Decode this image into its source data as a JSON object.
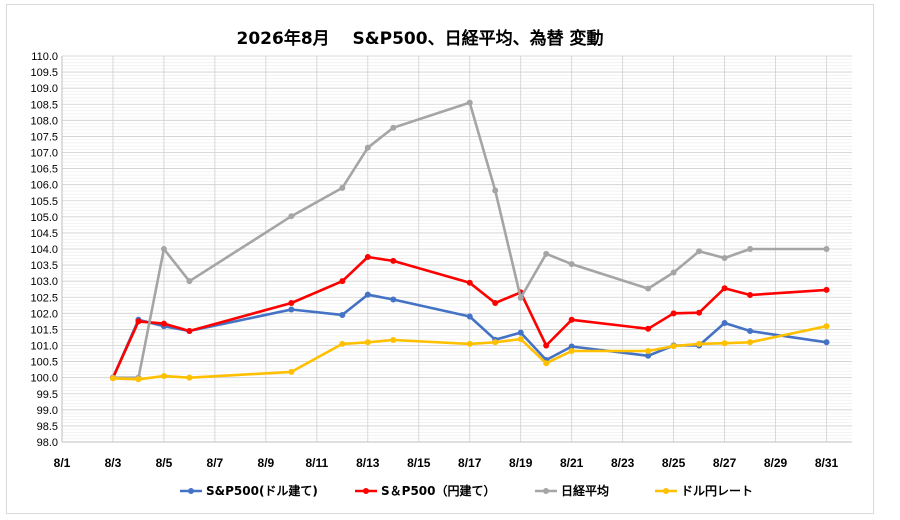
{
  "chart_data": {
    "type": "line",
    "title": "2026年8月　 S&P500、日経平均、為替 変動",
    "xlabel": "",
    "ylabel": "",
    "ylim": [
      98.0,
      110.0
    ],
    "ytick_step": 0.5,
    "xlim_day": [
      1,
      32
    ],
    "x_ticks": [
      "8/1",
      "8/3",
      "8/5",
      "8/7",
      "8/9",
      "8/11",
      "8/13",
      "8/15",
      "8/17",
      "8/19",
      "8/21",
      "8/23",
      "8/25",
      "8/27",
      "8/29",
      "8/31"
    ],
    "grid": true,
    "legend_position": "bottom",
    "series": [
      {
        "name": "S&P500(ドル建て)",
        "color": "#4472c4",
        "x": [
          "8/3",
          "8/4",
          "8/5",
          "8/6",
          "8/10",
          "8/12",
          "8/13",
          "8/14",
          "8/17",
          "8/18",
          "8/19",
          "8/20",
          "8/21",
          "8/24",
          "8/25",
          "8/26",
          "8/27",
          "8/28",
          "8/31"
        ],
        "values": [
          100.0,
          101.8,
          101.6,
          101.45,
          102.12,
          101.95,
          102.58,
          102.43,
          101.9,
          101.18,
          101.4,
          100.55,
          100.97,
          100.68,
          101.0,
          101.0,
          101.7,
          101.45,
          101.1
        ]
      },
      {
        "name": "S＆P500（円建て）",
        "color": "#ff0000",
        "x": [
          "8/3",
          "8/4",
          "8/5",
          "8/6",
          "8/10",
          "8/12",
          "8/13",
          "8/14",
          "8/17",
          "8/18",
          "8/19",
          "8/20",
          "8/21",
          "8/24",
          "8/25",
          "8/26",
          "8/27",
          "8/28",
          "8/31"
        ],
        "values": [
          100.0,
          101.75,
          101.68,
          101.45,
          102.32,
          103.0,
          103.75,
          103.63,
          102.95,
          102.32,
          102.65,
          101.0,
          101.8,
          101.52,
          102.0,
          102.02,
          102.78,
          102.57,
          102.73
        ]
      },
      {
        "name": "日経平均",
        "color": "#a5a5a5",
        "x": [
          "8/3",
          "8/4",
          "8/5",
          "8/6",
          "8/10",
          "8/12",
          "8/13",
          "8/14",
          "8/17",
          "8/18",
          "8/19",
          "8/20",
          "8/21",
          "8/24",
          "8/25",
          "8/26",
          "8/27",
          "8/28",
          "8/31"
        ],
        "values": [
          100.0,
          100.0,
          104.0,
          103.0,
          105.02,
          105.9,
          107.15,
          107.77,
          108.55,
          105.82,
          102.48,
          103.85,
          103.53,
          102.77,
          103.27,
          103.93,
          103.72,
          104.0,
          104.0
        ]
      },
      {
        "name": "ドル円レート",
        "color": "#ffc000",
        "x": [
          "8/3",
          "8/4",
          "8/5",
          "8/6",
          "8/10",
          "8/12",
          "8/13",
          "8/14",
          "8/17",
          "8/18",
          "8/19",
          "8/20",
          "8/21",
          "8/24",
          "8/25",
          "8/26",
          "8/27",
          "8/28",
          "8/31"
        ],
        "values": [
          99.98,
          99.95,
          100.05,
          100.0,
          100.18,
          101.05,
          101.1,
          101.17,
          101.05,
          101.1,
          101.2,
          100.45,
          100.83,
          100.83,
          100.98,
          101.05,
          101.07,
          101.1,
          101.6
        ]
      }
    ]
  }
}
